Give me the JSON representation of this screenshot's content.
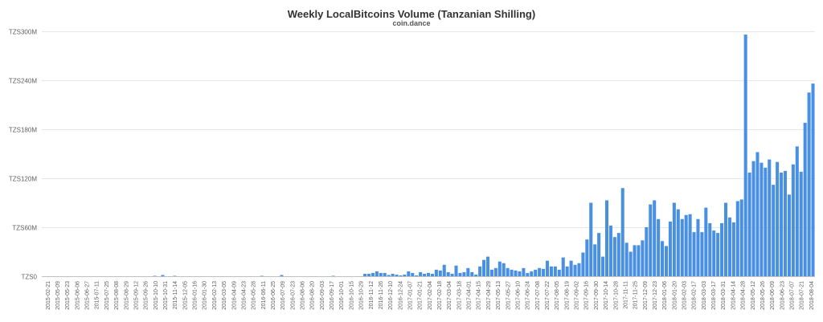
{
  "chart_data": {
    "type": "bar",
    "title": "Weekly LocalBitcoins Volume (Tanzanian Shilling)",
    "subtitle": "coin.dance",
    "xlabel": "",
    "ylabel": "",
    "ylim": [
      0,
      300000000
    ],
    "y_ticks": [
      {
        "value": 0,
        "label": "TZS0"
      },
      {
        "value": 60000000,
        "label": "TZS60M"
      },
      {
        "value": 120000000,
        "label": "TZS120M"
      },
      {
        "value": 180000000,
        "label": "TZS180M"
      },
      {
        "value": 240000000,
        "label": "TZS240M"
      },
      {
        "value": 300000000,
        "label": "TZS300M"
      }
    ],
    "x_tick_labels": [
      "2015-02-21",
      "2015-05-09",
      "2015-05-23",
      "2015-06-06",
      "2015-06-27",
      "2015-07-11",
      "2015-07-25",
      "2015-08-08",
      "2015-08-29",
      "2015-09-12",
      "2015-09-26",
      "2015-10-10",
      "2015-10-31",
      "2015-11-14",
      "2015-12-05",
      "2016-01-16",
      "2016-01-30",
      "2016-02-13",
      "2016-03-05",
      "2016-04-09",
      "2016-04-23",
      "2016-05-28",
      "2016-06-11",
      "2016-06-25",
      "2016-07-09",
      "2016-07-23",
      "2016-08-06",
      "2016-08-20",
      "2016-09-03",
      "2016-09-17",
      "2016-10-01",
      "2016-10-15",
      "2016-10-29",
      "2016-11-12",
      "2016-11-26",
      "2016-12-10",
      "2016-12-24",
      "2017-01-07",
      "2017-01-21",
      "2017-02-04",
      "2017-02-18",
      "2017-03-04",
      "2017-03-18",
      "2017-04-01",
      "2017-04-15",
      "2017-04-29",
      "2017-05-13",
      "2017-05-27",
      "2017-06-10",
      "2017-06-24",
      "2017-07-08",
      "2017-07-22",
      "2017-08-05",
      "2017-08-19",
      "2017-09-02",
      "2017-09-16",
      "2017-09-30",
      "2017-10-14",
      "2017-10-28",
      "2017-11-11",
      "2017-11-25",
      "2017-12-09",
      "2017-12-23",
      "2018-01-06",
      "2018-01-20",
      "2018-02-03",
      "2018-02-17",
      "2018-03-03",
      "2018-03-17",
      "2018-03-31",
      "2018-04-14",
      "2018-04-28",
      "2018-05-12",
      "2018-05-26",
      "2018-06-09",
      "2018-06-23",
      "2018-07-07",
      "2018-07-21",
      "2018-08-04"
    ],
    "values": [
      0,
      0,
      0,
      0,
      0,
      0,
      0,
      0,
      0,
      0,
      0,
      0,
      0,
      0,
      0,
      0,
      0,
      0,
      0,
      0,
      0,
      0,
      0,
      0,
      0,
      0,
      0,
      0,
      500000,
      0,
      1500000,
      0,
      0,
      500000,
      0,
      0,
      0,
      0,
      0,
      0,
      0,
      0,
      0,
      0,
      0,
      0,
      0,
      0,
      0,
      0,
      0,
      0,
      0,
      0,
      0,
      500000,
      0,
      0,
      0,
      0,
      1500000,
      0,
      0,
      0,
      0,
      0,
      0,
      0,
      0,
      0,
      0,
      0,
      0,
      500000,
      0,
      0,
      0,
      0,
      0,
      0,
      0,
      3000000,
      3000000,
      4000000,
      6000000,
      4000000,
      4000000,
      1500000,
      3000000,
      2000000,
      1000000,
      2000000,
      6000000,
      4000000,
      1000000,
      5000000,
      3000000,
      4000000,
      3000000,
      8000000,
      7000000,
      14000000,
      5000000,
      3000000,
      13000000,
      4000000,
      5000000,
      10000000,
      5000000,
      2000000,
      12000000,
      20000000,
      24000000,
      8000000,
      10000000,
      18000000,
      16000000,
      10000000,
      8000000,
      7000000,
      6000000,
      10000000,
      4000000,
      6000000,
      8000000,
      10000000,
      9000000,
      19000000,
      12000000,
      12000000,
      8000000,
      23000000,
      12000000,
      19000000,
      14000000,
      16000000,
      29000000,
      45000000,
      90000000,
      39000000,
      53000000,
      24000000,
      93000000,
      62000000,
      48000000,
      53000000,
      108000000,
      41000000,
      30000000,
      38000000,
      38000000,
      44000000,
      60000000,
      88000000,
      93000000,
      70000000,
      43000000,
      37000000,
      67000000,
      90000000,
      82000000,
      70000000,
      75000000,
      76000000,
      54000000,
      70000000,
      54000000,
      84000000,
      65000000,
      56000000,
      53000000,
      65000000,
      90000000,
      72000000,
      66000000,
      92000000,
      94000000,
      296000000,
      127000000,
      141000000,
      152000000,
      139000000,
      133000000,
      143000000,
      112000000,
      140000000,
      127000000,
      129000000,
      100000000,
      137000000,
      159000000,
      128000000,
      188000000,
      225000000,
      236000000
    ],
    "bar_color": "#4a90e2",
    "grid": true,
    "legend": "none"
  }
}
